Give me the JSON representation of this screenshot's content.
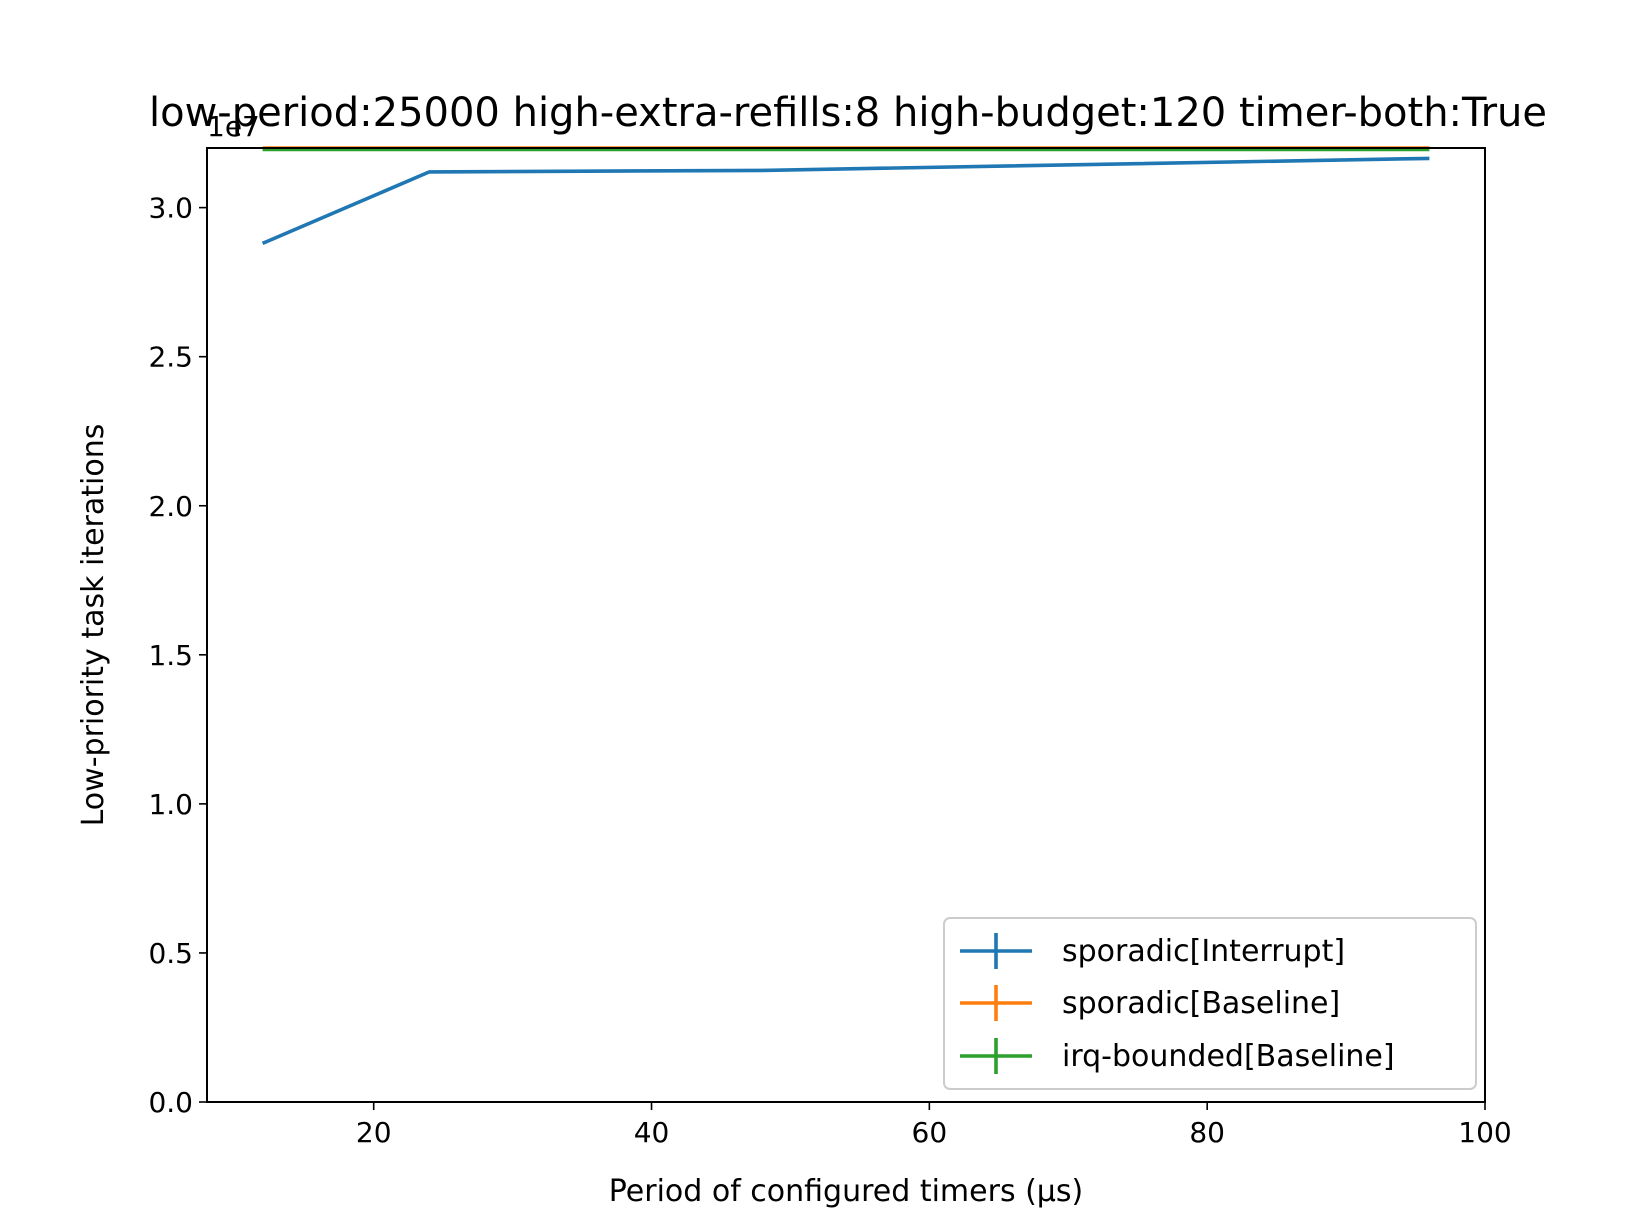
{
  "chart_data": {
    "type": "line",
    "title": "low-period:25000 high-extra-refills:8 high-budget:120 timer-both:True",
    "xlabel": "Period of configured timers (µs)",
    "ylabel": "Low-priority task iterations",
    "y_offset_label": "1e7",
    "xlim": [
      8,
      100
    ],
    "ylim": [
      0,
      32000000
    ],
    "x_ticks": [
      20,
      40,
      60,
      80,
      100
    ],
    "x_tick_labels": [
      "20",
      "40",
      "60",
      "80",
      "100"
    ],
    "y_ticks": [
      0,
      5000000,
      10000000,
      15000000,
      20000000,
      25000000,
      30000000
    ],
    "y_tick_labels": [
      "0.0",
      "0.5",
      "1.0",
      "1.5",
      "2.0",
      "2.5",
      "3.0"
    ],
    "grid": false,
    "legend_position": "lower right",
    "series": [
      {
        "name": "sporadic[Interrupt]",
        "color": "#1f77b4",
        "x": [
          12,
          24,
          48,
          96
        ],
        "y": [
          28800000,
          31200000,
          31250000,
          31650000
        ]
      },
      {
        "name": "sporadic[Baseline]",
        "color": "#ff7f0e",
        "x": [
          12,
          24,
          48,
          96
        ],
        "y": [
          32000000,
          32000000,
          32000000,
          32000000
        ]
      },
      {
        "name": "irq-bounded[Baseline]",
        "color": "#2ca02c",
        "x": [
          12,
          24,
          48,
          96
        ],
        "y": [
          31950000,
          31950000,
          31950000,
          31950000
        ]
      }
    ]
  }
}
